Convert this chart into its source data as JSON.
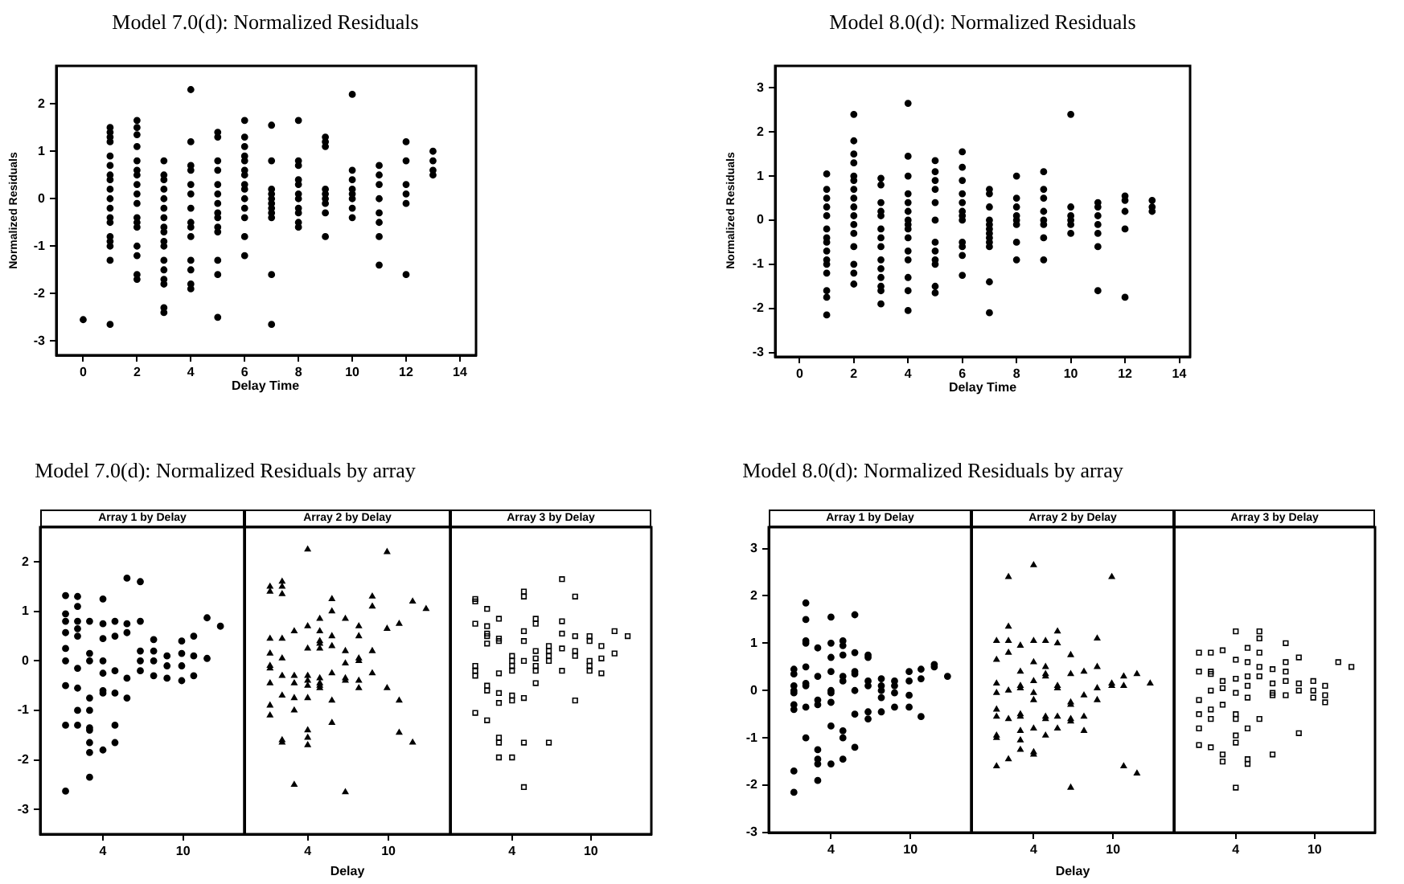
{
  "chart_data": [
    {
      "type": "scatter",
      "title": "Model 7.0(d): Normalized Residuals",
      "xlabel": "Delay Time",
      "ylabel": "Normalized Residuals",
      "color": "#000000",
      "marker": "circle",
      "x": [
        0,
        1,
        1,
        1,
        1,
        1,
        1,
        1,
        1,
        1,
        1,
        1,
        1,
        1,
        1,
        1,
        1,
        1,
        1,
        2,
        2,
        2,
        2,
        2,
        2,
        2,
        2,
        2,
        2,
        2,
        2,
        2,
        2,
        2,
        2,
        2,
        3,
        3,
        3,
        3,
        3,
        3,
        3,
        3,
        3,
        3,
        3,
        3,
        3,
        3,
        3,
        3,
        3,
        4,
        4,
        4,
        4,
        4,
        4,
        4,
        4,
        4,
        4,
        4,
        4,
        4,
        4,
        5,
        5,
        5,
        5,
        5,
        5,
        5,
        5,
        5,
        5,
        5,
        5,
        5,
        5,
        6,
        6,
        6,
        6,
        6,
        6,
        6,
        6,
        6,
        6,
        6,
        6,
        6,
        6,
        7,
        7,
        7,
        7,
        7,
        7,
        7,
        7,
        7,
        7,
        7,
        8,
        8,
        8,
        8,
        8,
        8,
        8,
        8,
        8,
        8,
        8,
        9,
        9,
        9,
        9,
        9,
        9,
        9,
        9,
        9,
        10,
        10,
        10,
        10,
        10,
        10,
        10,
        10,
        11,
        11,
        11,
        11,
        11,
        11,
        11,
        11,
        12,
        12,
        12,
        12,
        12,
        12,
        13,
        13,
        13,
        13
      ],
      "values": [
        -2.55,
        1.5,
        1.4,
        1.3,
        1.2,
        0.9,
        0.7,
        0.5,
        0.4,
        0.2,
        0,
        -0.2,
        -0.4,
        -0.5,
        -0.8,
        -0.9,
        -1,
        -1.3,
        -2.65,
        1.65,
        1.5,
        1.35,
        1.1,
        0.8,
        0.6,
        0.5,
        0.3,
        0.1,
        -0.1,
        -0.4,
        -0.5,
        -0.6,
        -1,
        -1.2,
        -1.6,
        -1.7,
        0.8,
        0.5,
        0.4,
        0.2,
        0,
        -0.2,
        -0.4,
        -0.6,
        -0.7,
        -0.9,
        -1,
        -1.3,
        -1.5,
        -1.7,
        -1.8,
        -2.3,
        -2.4,
        2.3,
        1.2,
        0.7,
        0.6,
        0.3,
        0.1,
        -0.2,
        -0.5,
        -0.6,
        -0.8,
        -1.3,
        -1.5,
        -1.8,
        -1.9,
        1.4,
        1.3,
        0.8,
        0.6,
        0.3,
        0.1,
        -0.1,
        -0.3,
        -0.4,
        -0.6,
        -0.7,
        -1.3,
        -1.6,
        -2.5,
        1.65,
        1.3,
        1.1,
        0.9,
        0.8,
        0.6,
        0.5,
        0.3,
        0.2,
        0,
        -0.2,
        -0.4,
        -0.8,
        -1.2,
        1.55,
        0.8,
        0.2,
        0.1,
        0,
        -0.1,
        -0.2,
        -0.3,
        -0.4,
        -1.6,
        -2.65,
        1.65,
        0.8,
        0.7,
        0.4,
        0.3,
        0.1,
        0,
        -0.2,
        -0.3,
        -0.5,
        -0.6,
        1.3,
        1.2,
        1.1,
        0.2,
        0.1,
        0,
        -0.1,
        -0.3,
        -0.8,
        2.2,
        0.6,
        0.4,
        0.2,
        0.1,
        0,
        -0.2,
        -0.4,
        0.7,
        0.5,
        0.3,
        0,
        -0.3,
        -0.5,
        -0.8,
        -1.4,
        1.2,
        0.8,
        0.3,
        0.1,
        -0.1,
        -1.6,
        1,
        0.8,
        0.6,
        0.5
      ],
      "xlim": [
        -1,
        14.6
      ],
      "xticks": [
        0,
        2,
        4,
        6,
        8,
        10,
        12,
        14
      ],
      "ylim": [
        -3.3,
        2.8
      ],
      "yticks": [
        -3,
        -2,
        -1,
        0,
        1,
        2
      ]
    },
    {
      "type": "scatter",
      "title": "Model 8.0(d): Normalized Residuals",
      "xlabel": "Delay Time",
      "ylabel": "Normalized Residuals",
      "color": "#000000",
      "marker": "circle",
      "x": [
        1,
        1,
        1,
        1,
        1,
        1,
        1,
        1,
        1,
        1,
        1,
        1,
        1,
        1,
        1,
        2,
        2,
        2,
        2,
        2,
        2,
        2,
        2,
        2,
        2,
        2,
        2,
        2,
        2,
        2,
        2,
        3,
        3,
        3,
        3,
        3,
        3,
        3,
        3,
        3,
        3,
        3,
        3,
        3,
        3,
        4,
        4,
        4,
        4,
        4,
        4,
        4,
        4,
        4,
        4,
        4,
        4,
        4,
        4,
        4,
        5,
        5,
        5,
        5,
        5,
        5,
        5,
        5,
        5,
        5,
        5,
        5,
        6,
        6,
        6,
        6,
        6,
        6,
        6,
        6,
        6,
        6,
        6,
        6,
        7,
        7,
        7,
        7,
        7,
        7,
        7,
        7,
        7,
        7,
        7,
        7,
        8,
        8,
        8,
        8,
        8,
        8,
        8,
        8,
        9,
        9,
        9,
        9,
        9,
        9,
        9,
        9,
        10,
        10,
        10,
        10,
        10,
        10,
        11,
        11,
        11,
        11,
        11,
        11,
        11,
        12,
        12,
        12,
        12,
        12,
        13,
        13,
        13
      ],
      "values": [
        1.05,
        0.7,
        0.5,
        0.3,
        0.1,
        -0.2,
        -0.4,
        -0.5,
        -0.7,
        -0.9,
        -1,
        -1.2,
        -1.6,
        -1.75,
        -2.15,
        2.4,
        1.8,
        1.5,
        1.3,
        1,
        0.9,
        0.7,
        0.5,
        0.3,
        0.1,
        -0.1,
        -0.3,
        -0.6,
        -1,
        -1.2,
        -1.45,
        0.95,
        0.8,
        0.4,
        0.2,
        0.1,
        -0.2,
        -0.4,
        -0.6,
        -0.9,
        -1.1,
        -1.3,
        -1.5,
        -1.6,
        -1.9,
        2.65,
        1.45,
        1,
        0.6,
        0.4,
        0.2,
        0,
        -0.1,
        -0.2,
        -0.4,
        -0.7,
        -0.9,
        -1.3,
        -1.6,
        -2.05,
        1.35,
        1.1,
        0.9,
        0.7,
        0.4,
        0,
        -0.5,
        -0.7,
        -0.9,
        -1,
        -1.5,
        -1.65,
        1.55,
        1.2,
        0.9,
        0.6,
        0.4,
        0.2,
        0.1,
        0,
        -0.5,
        -0.6,
        -0.8,
        -1.25,
        0.7,
        0.6,
        0.3,
        0,
        -0.1,
        -0.2,
        -0.3,
        -0.4,
        -0.5,
        -0.6,
        -1.4,
        -2.1,
        1,
        0.5,
        0.3,
        0.1,
        0,
        -0.1,
        -0.5,
        -0.9,
        1.1,
        0.7,
        0.5,
        0.2,
        0,
        -0.1,
        -0.4,
        -0.9,
        2.4,
        0.3,
        0.1,
        0,
        -0.1,
        -0.3,
        0.4,
        0.3,
        0.1,
        -0.1,
        -0.3,
        -0.6,
        -1.6,
        0.55,
        0.45,
        0.2,
        -0.2,
        -1.75,
        0.45,
        0.3,
        0.2
      ],
      "xlim": [
        -0.9,
        14.4
      ],
      "xticks": [
        0,
        2,
        4,
        6,
        8,
        10,
        12,
        14
      ],
      "ylim": [
        -3.1,
        3.5
      ],
      "yticks": [
        -3,
        -2,
        -1,
        0,
        1,
        2,
        3
      ]
    },
    {
      "type": "scatter",
      "title": "Model 7.0(d): Normalized Residuals by array",
      "subtitle": "Array 1 by Delay",
      "color": "#000000",
      "marker": "circle",
      "x": [
        1.2,
        1.2,
        1.2,
        1.2,
        1.2,
        1.2,
        1.2,
        1.2,
        1.2,
        2.1,
        2.1,
        2.1,
        2.1,
        2.1,
        2.1,
        2.1,
        2.1,
        2.1,
        3,
        3,
        3,
        3,
        3,
        3,
        3,
        3,
        3,
        3,
        4,
        4,
        4,
        4,
        4,
        4,
        4,
        4,
        4.9,
        4.9,
        4.9,
        4.9,
        4.9,
        4.9,
        5.8,
        5.8,
        5.8,
        5.8,
        5.8,
        6.8,
        6.8,
        6.8,
        6.8,
        6.8,
        7.8,
        7.8,
        7.8,
        7.8,
        8.8,
        8.8,
        8.8,
        9.9,
        9.9,
        9.9,
        9.9,
        10.8,
        10.8,
        10.8,
        11.8,
        11.8,
        12.8
      ],
      "values": [
        1.32,
        0.95,
        0.8,
        0.57,
        0.25,
        0,
        -0.5,
        -1.3,
        -2.63,
        1.3,
        1.1,
        0.8,
        0.65,
        0.5,
        -0.15,
        -0.55,
        -1,
        -1.3,
        0.8,
        0.15,
        0,
        -0.75,
        -1,
        -1.35,
        -1.4,
        -1.65,
        -1.85,
        -2.35,
        1.25,
        0.75,
        0.45,
        0,
        -0.25,
        -0.6,
        -0.65,
        -1.8,
        0.8,
        0.5,
        -0.2,
        -0.65,
        -1.3,
        -1.65,
        1.67,
        0.75,
        0.57,
        -0.35,
        -0.75,
        1.6,
        0.8,
        0.2,
        0,
        -0.2,
        0.43,
        0.2,
        0,
        -0.3,
        0.1,
        -0.1,
        -0.35,
        0.4,
        0.15,
        -0.1,
        -0.4,
        0.5,
        0.1,
        -0.3,
        0.87,
        0.05,
        0.7
      ],
      "xlim": [
        -0.7,
        14.6
      ],
      "xticks": [
        4,
        10
      ],
      "ylim": [
        -3.5,
        2.7
      ],
      "yticks": [
        -3,
        -2,
        -1,
        0,
        1,
        2
      ]
    },
    {
      "type": "scatter",
      "subtitle": "Array 2 by Delay",
      "xlabel": "Delay",
      "color": "#000000",
      "marker": "triangle",
      "tick_labels": "x",
      "x": [
        1.2,
        1.2,
        1.2,
        1.2,
        1.2,
        1.2,
        1.2,
        1.2,
        1.2,
        2.1,
        2.1,
        2.1,
        2.1,
        2.1,
        2.1,
        2.1,
        2.1,
        2.1,
        3,
        3,
        3,
        3,
        3,
        3,
        4,
        4,
        4,
        4,
        4,
        4,
        4,
        4,
        4,
        4,
        4.9,
        4.9,
        4.9,
        4.9,
        4.9,
        4.9,
        4.9,
        4.9,
        4.9,
        5.8,
        5.8,
        5.8,
        5.8,
        5.8,
        5.8,
        5.8,
        6.8,
        6.8,
        6.8,
        6.8,
        6.8,
        6.8,
        7.8,
        7.8,
        7.8,
        7.8,
        7.8,
        7.8,
        8.8,
        8.8,
        8.8,
        8.8,
        9.9,
        9.9,
        9.9,
        10.8,
        10.8,
        10.8,
        11.8,
        11.8,
        12.8
      ],
      "values": [
        1.5,
        1.4,
        0.45,
        0.15,
        -0.1,
        -0.15,
        -0.45,
        -0.9,
        -1.1,
        1.6,
        1.5,
        1.35,
        0.45,
        0.05,
        -0.3,
        -0.7,
        -1.6,
        -1.65,
        0.6,
        -0.3,
        -0.45,
        -0.75,
        -1,
        -2.5,
        2.25,
        0.7,
        0.25,
        -0.3,
        -0.4,
        -0.5,
        -0.75,
        -1.4,
        -1.55,
        -1.7,
        0.85,
        0.6,
        0.4,
        0.35,
        0.25,
        -0.35,
        -0.45,
        -0.5,
        -0.55,
        1.25,
        1,
        0.5,
        0.3,
        -0.25,
        -0.8,
        -1.25,
        0.85,
        0.2,
        -0.05,
        -0.35,
        -0.4,
        -2.65,
        0.7,
        0.5,
        0.05,
        0,
        -0.4,
        -0.55,
        1.3,
        1.1,
        0.2,
        -0.25,
        2.2,
        0.65,
        -0.55,
        0.75,
        -0.8,
        -1.45,
        1.2,
        -1.65,
        1.05
      ],
      "xlim": [
        -0.7,
        14.6
      ],
      "xticks": [
        4,
        10
      ],
      "ylim": [
        -3.5,
        2.7
      ],
      "yticks": [
        -3,
        -2,
        -1,
        0,
        1,
        2
      ]
    },
    {
      "type": "scatter",
      "subtitle": "Array 3 by Delay",
      "color": "#000000",
      "marker": "square",
      "tick_labels": "x",
      "x": [
        1.2,
        1.2,
        1.2,
        1.2,
        1.2,
        1.2,
        1.2,
        2.1,
        2.1,
        2.1,
        2.1,
        2.1,
        2.1,
        2.1,
        2.1,
        3,
        3,
        3,
        3,
        3,
        3,
        3,
        3,
        3,
        4,
        4,
        4,
        4,
        4,
        4,
        4,
        4.9,
        4.9,
        4.9,
        4.9,
        4.9,
        4.9,
        4.9,
        4.9,
        5.8,
        5.8,
        5.8,
        5.8,
        5.8,
        5.8,
        5.8,
        6.8,
        6.8,
        6.8,
        6.8,
        6.8,
        7.8,
        7.8,
        7.8,
        7.8,
        7.8,
        8.8,
        8.8,
        8.8,
        8.8,
        8.8,
        9.9,
        9.9,
        9.9,
        9.9,
        9.9,
        10.8,
        10.8,
        10.8,
        11.8,
        11.8,
        12.8
      ],
      "values": [
        1.25,
        1.2,
        0.75,
        -0.1,
        -0.2,
        -0.3,
        -1.05,
        1.05,
        0.7,
        0.55,
        0.5,
        0.35,
        -0.5,
        -0.6,
        -1.2,
        0.85,
        0.45,
        0.4,
        -0.25,
        -0.65,
        -0.85,
        -1.55,
        -1.65,
        -1.95,
        0.1,
        0,
        -0.1,
        -0.2,
        -0.7,
        -0.8,
        -1.95,
        1.4,
        1.3,
        0.6,
        0.4,
        0,
        -0.75,
        -1.65,
        -2.55,
        0.85,
        0.75,
        0.2,
        0.05,
        -0.1,
        -0.2,
        -0.45,
        0.3,
        0.2,
        0.1,
        0,
        -1.65,
        1.65,
        0.8,
        0.55,
        0.25,
        -0.2,
        1.3,
        0.5,
        0.2,
        0.1,
        -0.8,
        0.5,
        0.4,
        0,
        -0.1,
        -0.2,
        0.3,
        0.05,
        -0.25,
        0.6,
        0.15,
        0.5
      ],
      "xlim": [
        -0.7,
        14.6
      ],
      "xticks": [
        4,
        10
      ],
      "ylim": [
        -3.5,
        2.7
      ],
      "yticks": [
        -3,
        -2,
        -1,
        0,
        1,
        2
      ]
    },
    {
      "type": "scatter",
      "title": "Model 8.0(d): Normalized Residuals by array",
      "subtitle": "Array 1 by Delay",
      "color": "#000000",
      "marker": "circle",
      "x": [
        1.2,
        1.2,
        1.2,
        1.2,
        1.2,
        1.2,
        1.2,
        1.2,
        1.2,
        2.1,
        2.1,
        2.1,
        2.1,
        2.1,
        2.1,
        2.1,
        2.1,
        2.1,
        3,
        3,
        3,
        3,
        3,
        3,
        3,
        3,
        4,
        4,
        4,
        4,
        4,
        4,
        4,
        4,
        4,
        4.9,
        4.9,
        4.9,
        4.9,
        4.9,
        4.9,
        4.9,
        4.9,
        5.8,
        5.8,
        5.8,
        5.8,
        5.8,
        5.8,
        5.8,
        6.8,
        6.8,
        6.8,
        6.8,
        6.8,
        6.8,
        7.8,
        7.8,
        7.8,
        7.8,
        7.8,
        8.8,
        8.8,
        8.8,
        8.8,
        9.9,
        9.9,
        9.9,
        9.9,
        10.8,
        10.8,
        10.8,
        11.8,
        11.8,
        12.8
      ],
      "values": [
        0.45,
        0.35,
        0.1,
        0,
        -0.05,
        -0.3,
        -0.4,
        -1.7,
        -2.15,
        1.85,
        1.5,
        1.05,
        1,
        0.5,
        0.15,
        0.1,
        -0.35,
        -1,
        0.9,
        0.3,
        -0.2,
        -0.3,
        -1.25,
        -1.45,
        -1.55,
        -1.9,
        1.55,
        1,
        0.7,
        0.4,
        0,
        -0.05,
        -0.25,
        -0.75,
        -1.55,
        1.05,
        0.95,
        0.75,
        0.3,
        0.2,
        -0.85,
        -1,
        -1.45,
        1.6,
        0.8,
        0.4,
        0.35,
        0,
        -0.5,
        -1.2,
        0.75,
        0.7,
        0.2,
        0.1,
        -0.45,
        -0.6,
        0.25,
        0.1,
        0,
        -0.15,
        -0.45,
        0.2,
        0.1,
        -0.05,
        -0.35,
        0.4,
        0.2,
        -0.1,
        -0.35,
        0.45,
        0.25,
        -0.55,
        0.55,
        0.5,
        0.3
      ],
      "xlim": [
        -0.7,
        14.6
      ],
      "xticks": [
        4,
        10
      ],
      "ylim": [
        -3,
        3.45
      ],
      "yticks": [
        -3,
        -2,
        -1,
        0,
        1,
        2,
        3
      ]
    },
    {
      "type": "scatter",
      "subtitle": "Array 2 by Delay",
      "xlabel": "Delay",
      "color": "#000000",
      "marker": "triangle",
      "tick_labels": "x",
      "x": [
        1.2,
        1.2,
        1.2,
        1.2,
        1.2,
        1.2,
        1.2,
        1.2,
        1.2,
        2.1,
        2.1,
        2.1,
        2.1,
        2.1,
        2.1,
        2.1,
        3,
        3,
        3,
        3,
        3,
        3,
        3,
        3,
        3,
        4,
        4,
        4,
        4,
        4,
        4,
        4,
        4,
        4,
        4.9,
        4.9,
        4.9,
        4.9,
        4.9,
        4.9,
        4.9,
        5.8,
        5.8,
        5.8,
        5.8,
        5.8,
        5.8,
        6.8,
        6.8,
        6.8,
        6.8,
        6.8,
        6.8,
        6.8,
        7.8,
        7.8,
        7.8,
        7.8,
        8.8,
        8.8,
        8.8,
        8.8,
        9.9,
        9.9,
        9.9,
        10.8,
        10.8,
        10.8,
        11.8,
        11.8,
        12.8
      ],
      "values": [
        1.05,
        0.65,
        0.15,
        -0.05,
        -0.4,
        -0.55,
        -0.95,
        -1,
        -1.6,
        2.4,
        1.35,
        1.05,
        0.8,
        0,
        -0.6,
        -1.45,
        0.95,
        0.4,
        0.1,
        0.05,
        -0.5,
        -0.55,
        -0.85,
        -1.05,
        -1.25,
        2.65,
        1.05,
        0.6,
        0.2,
        -0.05,
        -0.2,
        -0.8,
        -1.3,
        -1.35,
        1.05,
        0.5,
        0.35,
        0.3,
        -0.55,
        -0.6,
        -0.95,
        1.25,
        1,
        0.1,
        0.05,
        -0.55,
        -0.8,
        0.75,
        0.35,
        -0.25,
        -0.3,
        -0.6,
        -0.65,
        -2.05,
        0.4,
        -0.1,
        -0.55,
        -0.85,
        1.1,
        0.5,
        0.05,
        -0.2,
        2.4,
        0.15,
        0.1,
        0.3,
        0.1,
        -1.6,
        0.35,
        -1.75,
        0.15
      ],
      "xlim": [
        -0.7,
        14.6
      ],
      "xticks": [
        4,
        10
      ],
      "ylim": [
        -3,
        3.45
      ],
      "yticks": [
        -3,
        -2,
        -1,
        0,
        1,
        2,
        3
      ]
    },
    {
      "type": "scatter",
      "subtitle": "Array 3 by Delay",
      "color": "#000000",
      "marker": "square",
      "tick_labels": "x",
      "x": [
        1.2,
        1.2,
        1.2,
        1.2,
        1.2,
        1.2,
        2.1,
        2.1,
        2.1,
        2.1,
        2.1,
        2.1,
        2.1,
        3,
        3,
        3,
        3,
        3,
        3,
        4,
        4,
        4,
        4,
        4,
        4,
        4,
        4,
        4,
        4.9,
        4.9,
        4.9,
        4.9,
        4.9,
        4.9,
        4.9,
        4.9,
        5.8,
        5.8,
        5.8,
        5.8,
        5.8,
        5.8,
        6.8,
        6.8,
        6.8,
        6.8,
        6.8,
        7.8,
        7.8,
        7.8,
        7.8,
        7.8,
        8.8,
        8.8,
        8.8,
        8.8,
        9.9,
        9.9,
        9.9,
        10.8,
        10.8,
        10.8,
        11.8,
        12.8
      ],
      "values": [
        0.8,
        0.4,
        -0.2,
        -0.5,
        -0.8,
        -1.15,
        0.8,
        0.4,
        0.35,
        0,
        -0.4,
        -0.6,
        -1.2,
        0.85,
        0.2,
        0.05,
        -0.3,
        -1.35,
        -1.5,
        1.25,
        0.65,
        0.25,
        -0.05,
        -0.5,
        -0.6,
        -0.95,
        -1.1,
        -2.05,
        0.9,
        0.6,
        0.3,
        0.1,
        -0.15,
        -0.8,
        -1.45,
        -1.55,
        1.25,
        1.1,
        0.8,
        0.5,
        0.3,
        -0.6,
        0.45,
        0.15,
        -0.05,
        -0.1,
        -1.35,
        1,
        0.6,
        0.4,
        0.2,
        -0.1,
        0.7,
        0.15,
        0,
        -0.9,
        0.2,
        0,
        -0.15,
        0.1,
        -0.1,
        -0.25,
        0.6,
        0.5
      ],
      "xlim": [
        -0.7,
        14.6
      ],
      "xticks": [
        4,
        10
      ],
      "ylim": [
        -3,
        3.45
      ],
      "yticks": [
        -3,
        -2,
        -1,
        0,
        1,
        2,
        3
      ]
    }
  ]
}
